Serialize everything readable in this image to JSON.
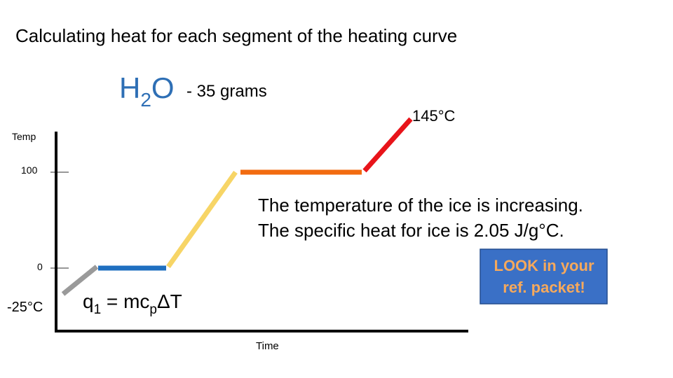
{
  "header": {
    "title": "Calculating heat for each segment of the heating curve"
  },
  "substance": {
    "formula": {
      "element1": "H",
      "subscript": "2",
      "element2": "O"
    },
    "mass": "- 35 grams"
  },
  "axes": {
    "y_label": "Temp",
    "x_label": "Time",
    "y_tick_top": "100",
    "y_tick_mid": "0",
    "y_start": "-25°C",
    "end_temp": "145°C"
  },
  "explanation": {
    "lines": [
      "The temperature of the ice is increasing.",
      "The specific heat for ice is 2.05 J/g°C."
    ]
  },
  "equation": {
    "q": "q",
    "q_sub": "1",
    "middle": " = mc",
    "c_sub": "p",
    "end": "ΔT"
  },
  "callout": {
    "lines": [
      "LOOK in your",
      "ref. packet!"
    ]
  }
}
